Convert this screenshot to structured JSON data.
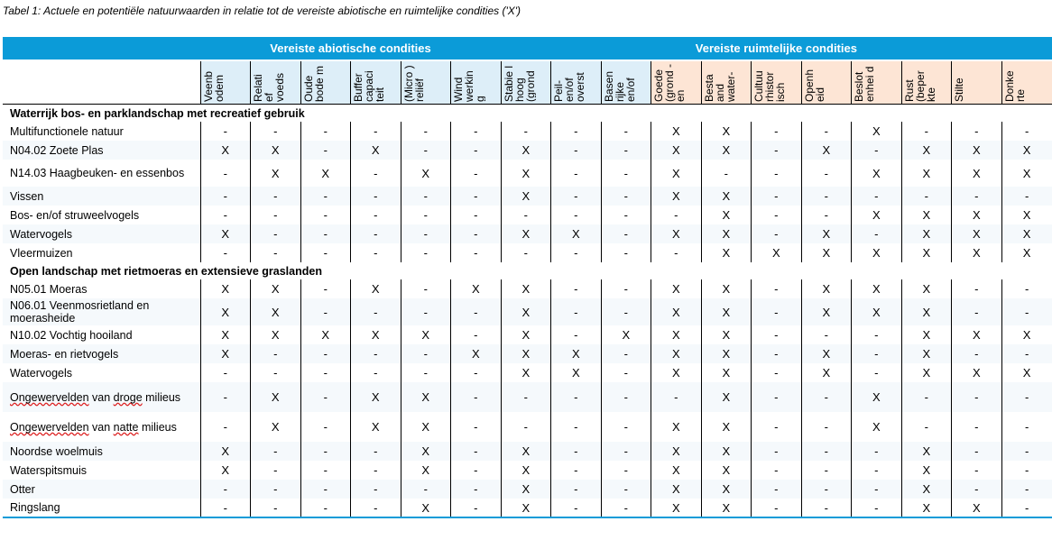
{
  "caption": "Tabel 1: Actuele en potentiële natuurwaarden in relatie tot de vereiste abiotische en ruimtelijke condities ('X')",
  "groups": {
    "abiotic": "Vereiste abiotische condities",
    "spatial": "Vereiste ruimtelijke condities"
  },
  "columns": [
    "Veenb odem",
    "Relati ef voeds",
    "Oude bode m",
    "Buffer capaci teit",
    "(Micro ) reliëf",
    "Wind werkin g",
    "Stabie l hoog (grond",
    "Peil- en/of overst",
    "Basen rijke en/of",
    "Goede (grond - en",
    "Besta and water-",
    "Cultuu rhistor isch",
    "Openh eid",
    "Beslot enhei d",
    "Rust (beper kte",
    "Stilte",
    "Donke rte"
  ],
  "sections": [
    {
      "title": "Waterrijk bos- en parklandschap met recreatief gebruik",
      "rows": [
        {
          "label": "Multifunctionele natuur",
          "values": [
            "-",
            "-",
            "-",
            "-",
            "-",
            "-",
            "-",
            "-",
            "-",
            "X",
            "X",
            "-",
            "-",
            "X",
            "-",
            "-",
            "-"
          ]
        },
        {
          "label": "N04.02 Zoete Plas",
          "values": [
            "X",
            "X",
            "-",
            "X",
            "-",
            "-",
            "X",
            "-",
            "-",
            "X",
            "X",
            "-",
            "X",
            "-",
            "X",
            "X",
            "X"
          ]
        },
        {
          "label": "N14.03 Haagbeuken- en essenbos",
          "values": [
            "-",
            "X",
            "X",
            "-",
            "X",
            "-",
            "X",
            "-",
            "-",
            "X",
            "-",
            "-",
            "-",
            "X",
            "X",
            "X",
            "X"
          ]
        },
        {
          "label": "Vissen",
          "values": [
            "-",
            "-",
            "-",
            "-",
            "-",
            "-",
            "X",
            "-",
            "-",
            "X",
            "X",
            "-",
            "-",
            "-",
            "-",
            "-",
            "-"
          ]
        },
        {
          "label": "Bos- en/of struweelvogels",
          "values": [
            "-",
            "-",
            "-",
            "-",
            "-",
            "-",
            "-",
            "-",
            "-",
            "-",
            "X",
            "-",
            "-",
            "X",
            "X",
            "X",
            "X"
          ]
        },
        {
          "label": "Watervogels",
          "values": [
            "X",
            "-",
            "-",
            "-",
            "-",
            "-",
            "X",
            "X",
            "-",
            "X",
            "X",
            "-",
            "X",
            "-",
            "X",
            "X",
            "X"
          ]
        },
        {
          "label": "Vleermuizen",
          "values": [
            "-",
            "-",
            "-",
            "-",
            "-",
            "-",
            "-",
            "-",
            "-",
            "-",
            "X",
            "X",
            "X",
            "X",
            "X",
            "X",
            "X"
          ]
        }
      ]
    },
    {
      "title": "Open landschap met rietmoeras en extensieve graslanden",
      "rows": [
        {
          "label": "N05.01 Moeras",
          "values": [
            "X",
            "X",
            "-",
            "X",
            "-",
            "X",
            "X",
            "-",
            "-",
            "X",
            "X",
            "-",
            "X",
            "X",
            "X",
            "-",
            "-"
          ]
        },
        {
          "label": "N06.01 Veenmosrietland en moerasheide",
          "values": [
            "X",
            "X",
            "-",
            "-",
            "-",
            "-",
            "X",
            "-",
            "-",
            "X",
            "X",
            "-",
            "X",
            "X",
            "X",
            "-",
            "-"
          ]
        },
        {
          "label": "N10.02 Vochtig hooiland",
          "values": [
            "X",
            "X",
            "X",
            "X",
            "X",
            "-",
            "X",
            "-",
            "X",
            "X",
            "X",
            "-",
            "-",
            "-",
            "X",
            "X",
            "X"
          ]
        },
        {
          "label": "Moeras- en rietvogels",
          "values": [
            "X",
            "-",
            "-",
            "-",
            "-",
            "X",
            "X",
            "X",
            "-",
            "X",
            "X",
            "-",
            "X",
            "-",
            "X",
            "-",
            "-"
          ]
        },
        {
          "label": "Watervogels",
          "values": [
            "-",
            "-",
            "-",
            "-",
            "-",
            "-",
            "X",
            "X",
            "-",
            "X",
            "X",
            "-",
            "X",
            "-",
            "X",
            "X",
            "X"
          ]
        },
        {
          "label": "Ongewervelden van droge milieus",
          "values": [
            "-",
            "X",
            "-",
            "X",
            "X",
            "-",
            "-",
            "-",
            "-",
            "-",
            "X",
            "-",
            "-",
            "X",
            "-",
            "-",
            "-"
          ]
        },
        {
          "label": "Ongewervelden van natte milieus",
          "values": [
            "-",
            "X",
            "-",
            "X",
            "X",
            "-",
            "-",
            "-",
            "-",
            "X",
            "X",
            "-",
            "-",
            "X",
            "-",
            "-",
            "-"
          ]
        },
        {
          "label": "Noordse woelmuis",
          "values": [
            "X",
            "-",
            "-",
            "-",
            "X",
            "-",
            "X",
            "-",
            "-",
            "X",
            "X",
            "-",
            "-",
            "-",
            "X",
            "-",
            "-"
          ]
        },
        {
          "label": "Waterspitsmuis",
          "values": [
            "X",
            "-",
            "-",
            "-",
            "X",
            "-",
            "X",
            "-",
            "-",
            "X",
            "X",
            "-",
            "-",
            "-",
            "X",
            "-",
            "-"
          ]
        },
        {
          "label": "Otter",
          "values": [
            "-",
            "-",
            "-",
            "-",
            "-",
            "-",
            "X",
            "-",
            "-",
            "X",
            "X",
            "-",
            "-",
            "-",
            "X",
            "-",
            "-"
          ]
        },
        {
          "label": "Ringslang",
          "values": [
            "-",
            "-",
            "-",
            "-",
            "X",
            "-",
            "X",
            "-",
            "-",
            "X",
            "X",
            "-",
            "-",
            "-",
            "X",
            "X",
            "-"
          ]
        }
      ]
    }
  ]
}
